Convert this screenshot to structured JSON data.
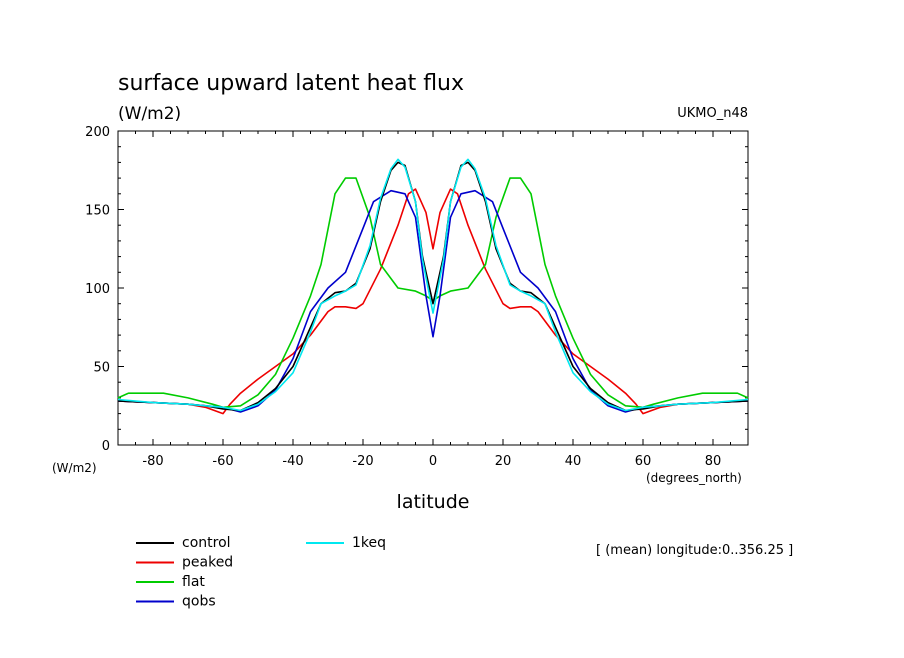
{
  "chart_data": {
    "type": "line",
    "title": "surface upward latent heat flux",
    "units": "(W/m2)",
    "model": "UKMO_n48",
    "xlabel": "latitude",
    "x_units": "(degrees_north)",
    "y_units": "(W/m2)",
    "annotation": "[ (mean) longitude:0..356.25 ]",
    "xlim": [
      -90,
      90
    ],
    "ylim": [
      0,
      200
    ],
    "x_ticks": [
      -80,
      -60,
      -40,
      -20,
      0,
      20,
      40,
      60,
      80
    ],
    "y_ticks": [
      0,
      50,
      100,
      150,
      200
    ],
    "x_tick_labels": [
      "-80",
      "-60",
      "-40",
      "-20",
      "0",
      "20",
      "40",
      "60",
      "80"
    ],
    "y_tick_labels": [
      "0",
      "50",
      "100",
      "150",
      "200"
    ],
    "grid": false,
    "legend_position": "bottom-left",
    "series": [
      {
        "name": "control",
        "color": "#000000",
        "x": [
          -90,
          -80,
          -70,
          -65,
          -60,
          -55,
          -50,
          -45,
          -40,
          -35,
          -32,
          -28,
          -25,
          -22,
          -18,
          -15,
          -12,
          -10,
          -8,
          -5,
          -3,
          0,
          3,
          5,
          8,
          10,
          12,
          15,
          18,
          22,
          25,
          28,
          32,
          35,
          40,
          45,
          50,
          55,
          60,
          65,
          70,
          80,
          90
        ],
        "y": [
          28,
          27,
          26,
          25,
          23,
          22,
          27,
          36,
          50,
          75,
          90,
          97,
          98,
          103,
          125,
          155,
          175,
          180,
          178,
          155,
          120,
          90,
          120,
          155,
          178,
          180,
          175,
          155,
          125,
          103,
          98,
          97,
          90,
          75,
          50,
          36,
          27,
          22,
          23,
          25,
          26,
          27,
          28
        ]
      },
      {
        "name": "peaked",
        "color": "#ee0000",
        "x": [
          -90,
          -80,
          -70,
          -65,
          -60,
          -58,
          -55,
          -50,
          -45,
          -40,
          -35,
          -30,
          -28,
          -25,
          -22,
          -20,
          -15,
          -10,
          -7,
          -5,
          -2,
          0,
          2,
          5,
          7,
          10,
          15,
          20,
          22,
          25,
          28,
          30,
          35,
          40,
          45,
          50,
          55,
          58,
          60,
          65,
          70,
          80,
          90
        ],
        "y": [
          28,
          27,
          26,
          24,
          20,
          26,
          33,
          42,
          50,
          58,
          70,
          85,
          88,
          88,
          87,
          90,
          112,
          140,
          160,
          163,
          148,
          125,
          148,
          163,
          160,
          140,
          112,
          90,
          87,
          88,
          88,
          85,
          70,
          58,
          50,
          42,
          33,
          26,
          20,
          24,
          26,
          27,
          28
        ]
      },
      {
        "name": "flat",
        "color": "#00cc00",
        "x": [
          -90,
          -87,
          -83,
          -77,
          -70,
          -63,
          -60,
          -55,
          -50,
          -45,
          -40,
          -35,
          -32,
          -28,
          -25,
          -22,
          -18,
          -15,
          -10,
          -5,
          -2,
          0,
          2,
          5,
          10,
          15,
          18,
          22,
          25,
          28,
          32,
          35,
          40,
          45,
          50,
          55,
          60,
          63,
          70,
          77,
          83,
          87,
          90
        ],
        "y": [
          30,
          33,
          33,
          33,
          30,
          26,
          24,
          25,
          32,
          45,
          68,
          95,
          115,
          160,
          170,
          170,
          145,
          115,
          100,
          98,
          95,
          92,
          95,
          98,
          100,
          115,
          145,
          170,
          170,
          160,
          115,
          95,
          68,
          45,
          32,
          25,
          24,
          26,
          30,
          33,
          33,
          33,
          30
        ]
      },
      {
        "name": "qobs",
        "color": "#0000cc",
        "x": [
          -90,
          -80,
          -70,
          -60,
          -55,
          -50,
          -45,
          -40,
          -35,
          -30,
          -25,
          -20,
          -17,
          -12,
          -8,
          -5,
          -2,
          0,
          2,
          5,
          8,
          12,
          17,
          20,
          25,
          30,
          35,
          40,
          45,
          50,
          55,
          60,
          70,
          80,
          90
        ],
        "y": [
          28,
          27,
          26,
          24,
          21,
          25,
          35,
          55,
          85,
          100,
          110,
          138,
          155,
          162,
          160,
          145,
          95,
          69,
          95,
          145,
          160,
          162,
          155,
          138,
          110,
          100,
          85,
          55,
          35,
          25,
          21,
          24,
          26,
          27,
          28
        ]
      },
      {
        "name": "1keq",
        "color": "#00e8f0",
        "x": [
          -90,
          -80,
          -70,
          -65,
          -60,
          -55,
          -50,
          -45,
          -40,
          -35,
          -32,
          -28,
          -25,
          -22,
          -18,
          -15,
          -12,
          -10,
          -8,
          -5,
          -3,
          0,
          3,
          5,
          8,
          10,
          12,
          15,
          18,
          22,
          25,
          28,
          32,
          35,
          40,
          45,
          50,
          55,
          60,
          65,
          70,
          80,
          90
        ],
        "y": [
          29,
          27,
          26,
          25,
          24,
          22,
          26,
          34,
          46,
          72,
          90,
          95,
          98,
          102,
          127,
          157,
          176,
          182,
          177,
          155,
          118,
          84,
          118,
          155,
          177,
          182,
          176,
          157,
          127,
          102,
          98,
          95,
          90,
          72,
          46,
          34,
          26,
          22,
          24,
          25,
          26,
          27,
          29
        ]
      }
    ]
  }
}
